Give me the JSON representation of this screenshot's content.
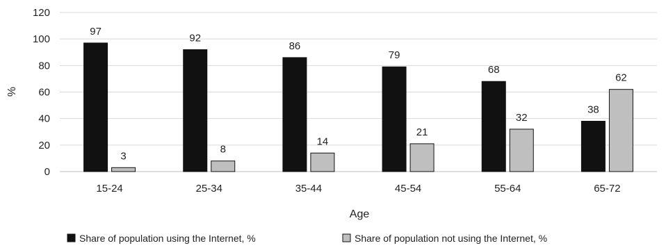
{
  "chart_data": {
    "type": "bar",
    "title": "",
    "xlabel": "Age",
    "ylabel": "%",
    "ylim": [
      0,
      120
    ],
    "yticks": [
      0,
      20,
      40,
      60,
      80,
      100,
      120
    ],
    "grid": true,
    "legend_position": "bottom",
    "categories": [
      "15-24",
      "25-34",
      "35-44",
      "45-54",
      "55-64",
      "65-72"
    ],
    "series": [
      {
        "name": "Share of population using the Internet, %",
        "values": [
          97,
          92,
          86,
          79,
          68,
          38
        ],
        "color": "#111111"
      },
      {
        "name": "Share of population not using the Internet, %",
        "values": [
          3,
          8,
          14,
          21,
          32,
          62
        ],
        "color": "#bfbfbf"
      }
    ]
  }
}
